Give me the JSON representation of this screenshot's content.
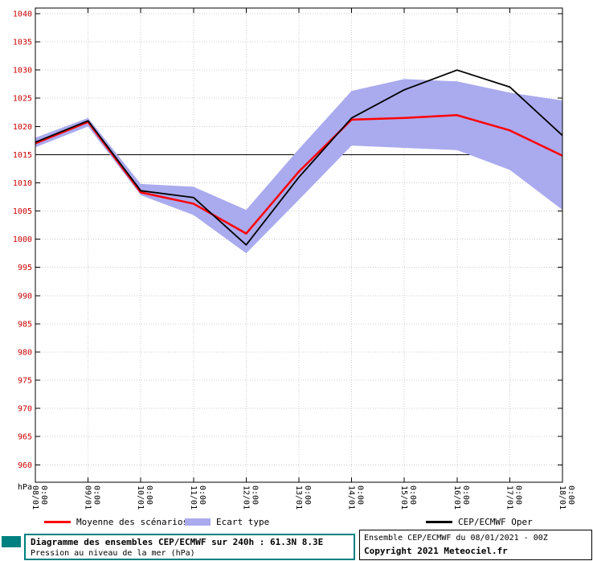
{
  "chart_data": {
    "type": "line",
    "title": "Diagramme des ensembles CEP/ECMWF sur 240h : 61.3N 8.3E",
    "subtitle": "Pression au niveau de la mer (hPa)",
    "unit_label": "hPa",
    "x_time_label": "0:00",
    "categories": [
      "08/01",
      "09/01",
      "10/01",
      "11/01",
      "12/01",
      "13/01",
      "14/01",
      "15/01",
      "16/01",
      "17/01",
      "18/01"
    ],
    "ylim": [
      956.9,
      1041
    ],
    "yticks": {
      "min": 960,
      "max": 1040,
      "step": 5
    },
    "reference_line": 1015,
    "grid": true,
    "legend_position": "bottom",
    "band": {
      "name": "Ecart type",
      "color": "#aaaaee",
      "upper": [
        1018,
        1021.5,
        1009.8,
        1009.3,
        1005.2,
        1016,
        1026.3,
        1028.4,
        1028,
        1026,
        1024.6
      ],
      "lower": [
        1016.3,
        1020,
        1007.8,
        1004.3,
        997.5,
        1007,
        1016.6,
        1016.2,
        1015.8,
        1012.3,
        1005.2
      ]
    },
    "series": [
      {
        "name": "Moyenne des scénarios",
        "color": "#ff0000",
        "width": 2.5,
        "values": [
          1017,
          1020.8,
          1008.3,
          1006.3,
          1001,
          1012,
          1021.2,
          1021.5,
          1022,
          1019.3,
          1014.8
        ]
      },
      {
        "name": "CEP/ECMWF Oper",
        "color": "#000000",
        "width": 1.8,
        "values": [
          1017.2,
          1021,
          1008.6,
          1007.4,
          999,
          1011,
          1021.5,
          1026.5,
          1030,
          1027,
          1018.4
        ]
      }
    ],
    "colors": {
      "grid": "#cccccc",
      "axis": "#000000",
      "ytick_label": "#cc0000"
    }
  },
  "info_box": {
    "accent_color": "#008080"
  },
  "footer_box": {
    "run_info": "Ensemble CEP/ECMWF du 08/01/2021 - 00Z",
    "copyright": "Copyright 2021 Meteociel.fr"
  }
}
